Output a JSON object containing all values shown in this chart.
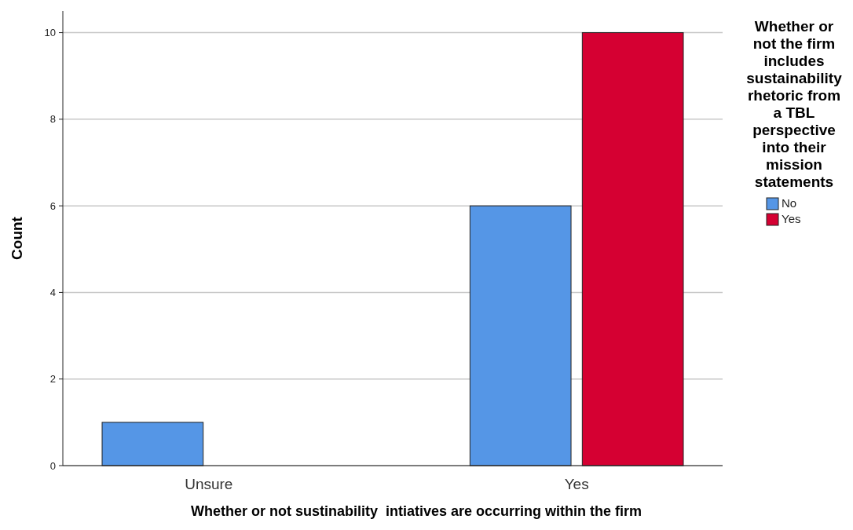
{
  "chart_data": {
    "type": "bar",
    "xlabel": "Whether or not sustinability  intiatives are occurring within the firm",
    "ylabel": "Count",
    "legend_title": "Whether or not the firm includes sustainability rhetoric from a TBL perspective into their mission statements",
    "categories": [
      "Unsure",
      "Yes"
    ],
    "series": [
      {
        "name": "No",
        "color": "#5596e6",
        "values": [
          1,
          6
        ]
      },
      {
        "name": "Yes",
        "color": "#d50032",
        "values": [
          null,
          10
        ]
      }
    ],
    "ylim": [
      0,
      10.5
    ],
    "yticks": [
      0,
      2,
      4,
      6,
      8,
      10
    ],
    "grid": "y",
    "legend": "right"
  }
}
